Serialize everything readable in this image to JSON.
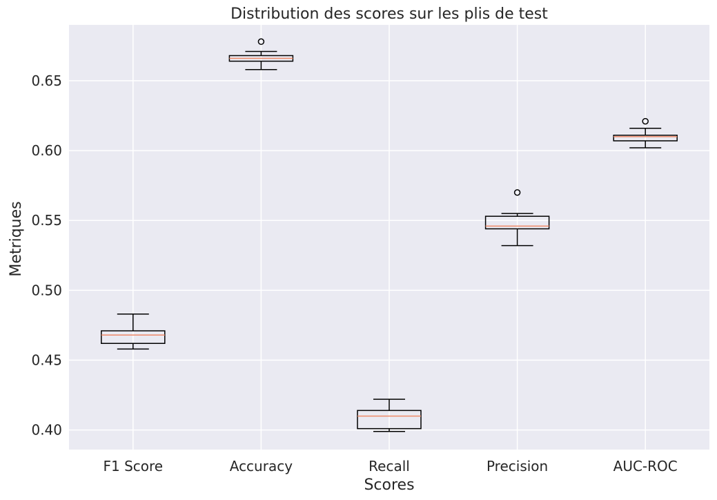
{
  "chart_data": {
    "type": "box",
    "title": "Distribution des scores sur les plis de test",
    "xlabel": "Scores",
    "ylabel": "Metriques",
    "ylim": [
      0.386,
      0.69
    ],
    "yticks": [
      0.4,
      0.45,
      0.5,
      0.55,
      0.6,
      0.65
    ],
    "ytick_labels": [
      "0.40",
      "0.45",
      "0.50",
      "0.55",
      "0.60",
      "0.65"
    ],
    "grid": true,
    "categories": [
      "F1 Score",
      "Accuracy",
      "Recall",
      "Precision",
      "AUC-ROC"
    ],
    "boxes": [
      {
        "category": "F1 Score",
        "whisker_low": 0.458,
        "q1": 0.462,
        "median": 0.468,
        "q3": 0.471,
        "whisker_high": 0.483,
        "outliers": []
      },
      {
        "category": "Accuracy",
        "whisker_low": 0.658,
        "q1": 0.664,
        "median": 0.666,
        "q3": 0.668,
        "whisker_high": 0.671,
        "outliers": [
          0.678
        ]
      },
      {
        "category": "Recall",
        "whisker_low": 0.399,
        "q1": 0.401,
        "median": 0.41,
        "q3": 0.414,
        "whisker_high": 0.422,
        "outliers": []
      },
      {
        "category": "Precision",
        "whisker_low": 0.532,
        "q1": 0.544,
        "median": 0.546,
        "q3": 0.553,
        "whisker_high": 0.555,
        "outliers": [
          0.57
        ]
      },
      {
        "category": "AUC-ROC",
        "whisker_low": 0.602,
        "q1": 0.607,
        "median": 0.61,
        "q3": 0.611,
        "whisker_high": 0.616,
        "outliers": [
          0.621
        ]
      }
    ],
    "colors": {
      "plot_background": "#eaeaf2",
      "grid": "#ffffff",
      "box_edge": "#000000",
      "median": "#ee8866",
      "text": "#262626"
    }
  }
}
